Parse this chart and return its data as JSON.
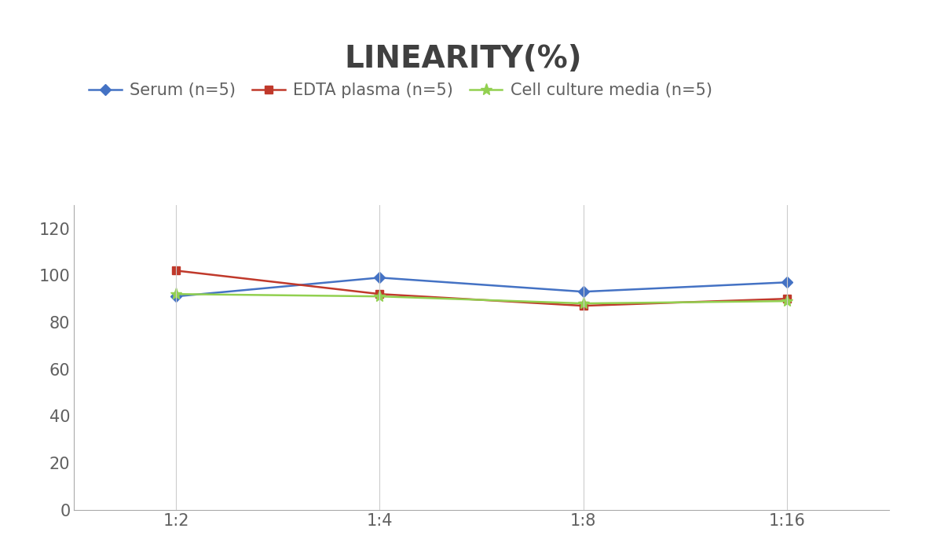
{
  "title": "LINEARITY(%)",
  "title_fontsize": 28,
  "title_fontweight": "bold",
  "title_color": "#404040",
  "x_labels": [
    "1:2",
    "1:4",
    "1:8",
    "1:16"
  ],
  "x_positions": [
    0,
    1,
    2,
    3
  ],
  "serum": {
    "label": "Serum (n=5)",
    "values": [
      91,
      99,
      93,
      97
    ],
    "color": "#4472C4",
    "marker": "D",
    "markersize": 7,
    "linewidth": 1.8
  },
  "edta": {
    "label": "EDTA plasma (n=5)",
    "values": [
      102,
      92,
      87,
      90
    ],
    "color": "#C0392B",
    "marker": "s",
    "markersize": 7,
    "linewidth": 1.8
  },
  "cell": {
    "label": "Cell culture media (n=5)",
    "values": [
      92,
      91,
      88,
      89
    ],
    "color": "#92D050",
    "marker": "*",
    "markersize": 11,
    "linewidth": 1.8
  },
  "ylim": [
    0,
    130
  ],
  "yticks": [
    0,
    20,
    40,
    60,
    80,
    100,
    120
  ],
  "grid_color": "#CCCCCC",
  "background_color": "#FFFFFF",
  "tick_fontsize": 15,
  "tick_color": "#606060",
  "legend_fontsize": 15,
  "spine_color": "#AAAAAA"
}
